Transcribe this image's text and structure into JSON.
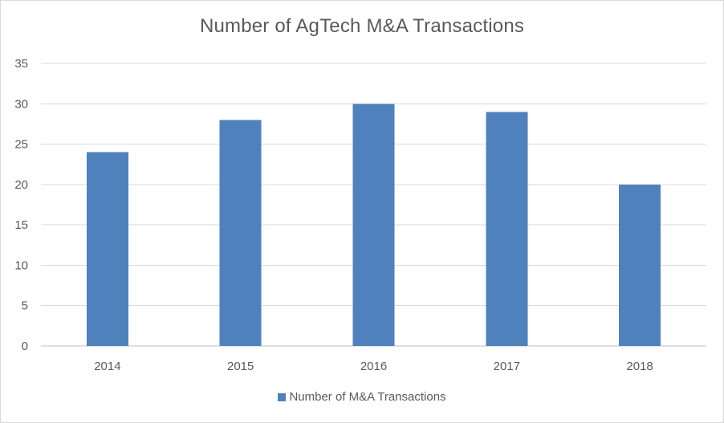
{
  "chart_data": {
    "type": "bar",
    "title": "Number of AgTech M&A Transactions",
    "categories": [
      "2014",
      "2015",
      "2016",
      "2017",
      "2018"
    ],
    "series": [
      {
        "name": "Number of M&A Transactions",
        "values": [
          24,
          28,
          30,
          29,
          20
        ],
        "color": "#4f81bd"
      }
    ],
    "xlabel": "",
    "ylabel": "",
    "ylim": [
      0,
      35
    ],
    "yticks": [
      "0",
      "5",
      "10",
      "15",
      "20",
      "25",
      "30",
      "35"
    ],
    "grid": true,
    "legend_position": "bottom"
  }
}
